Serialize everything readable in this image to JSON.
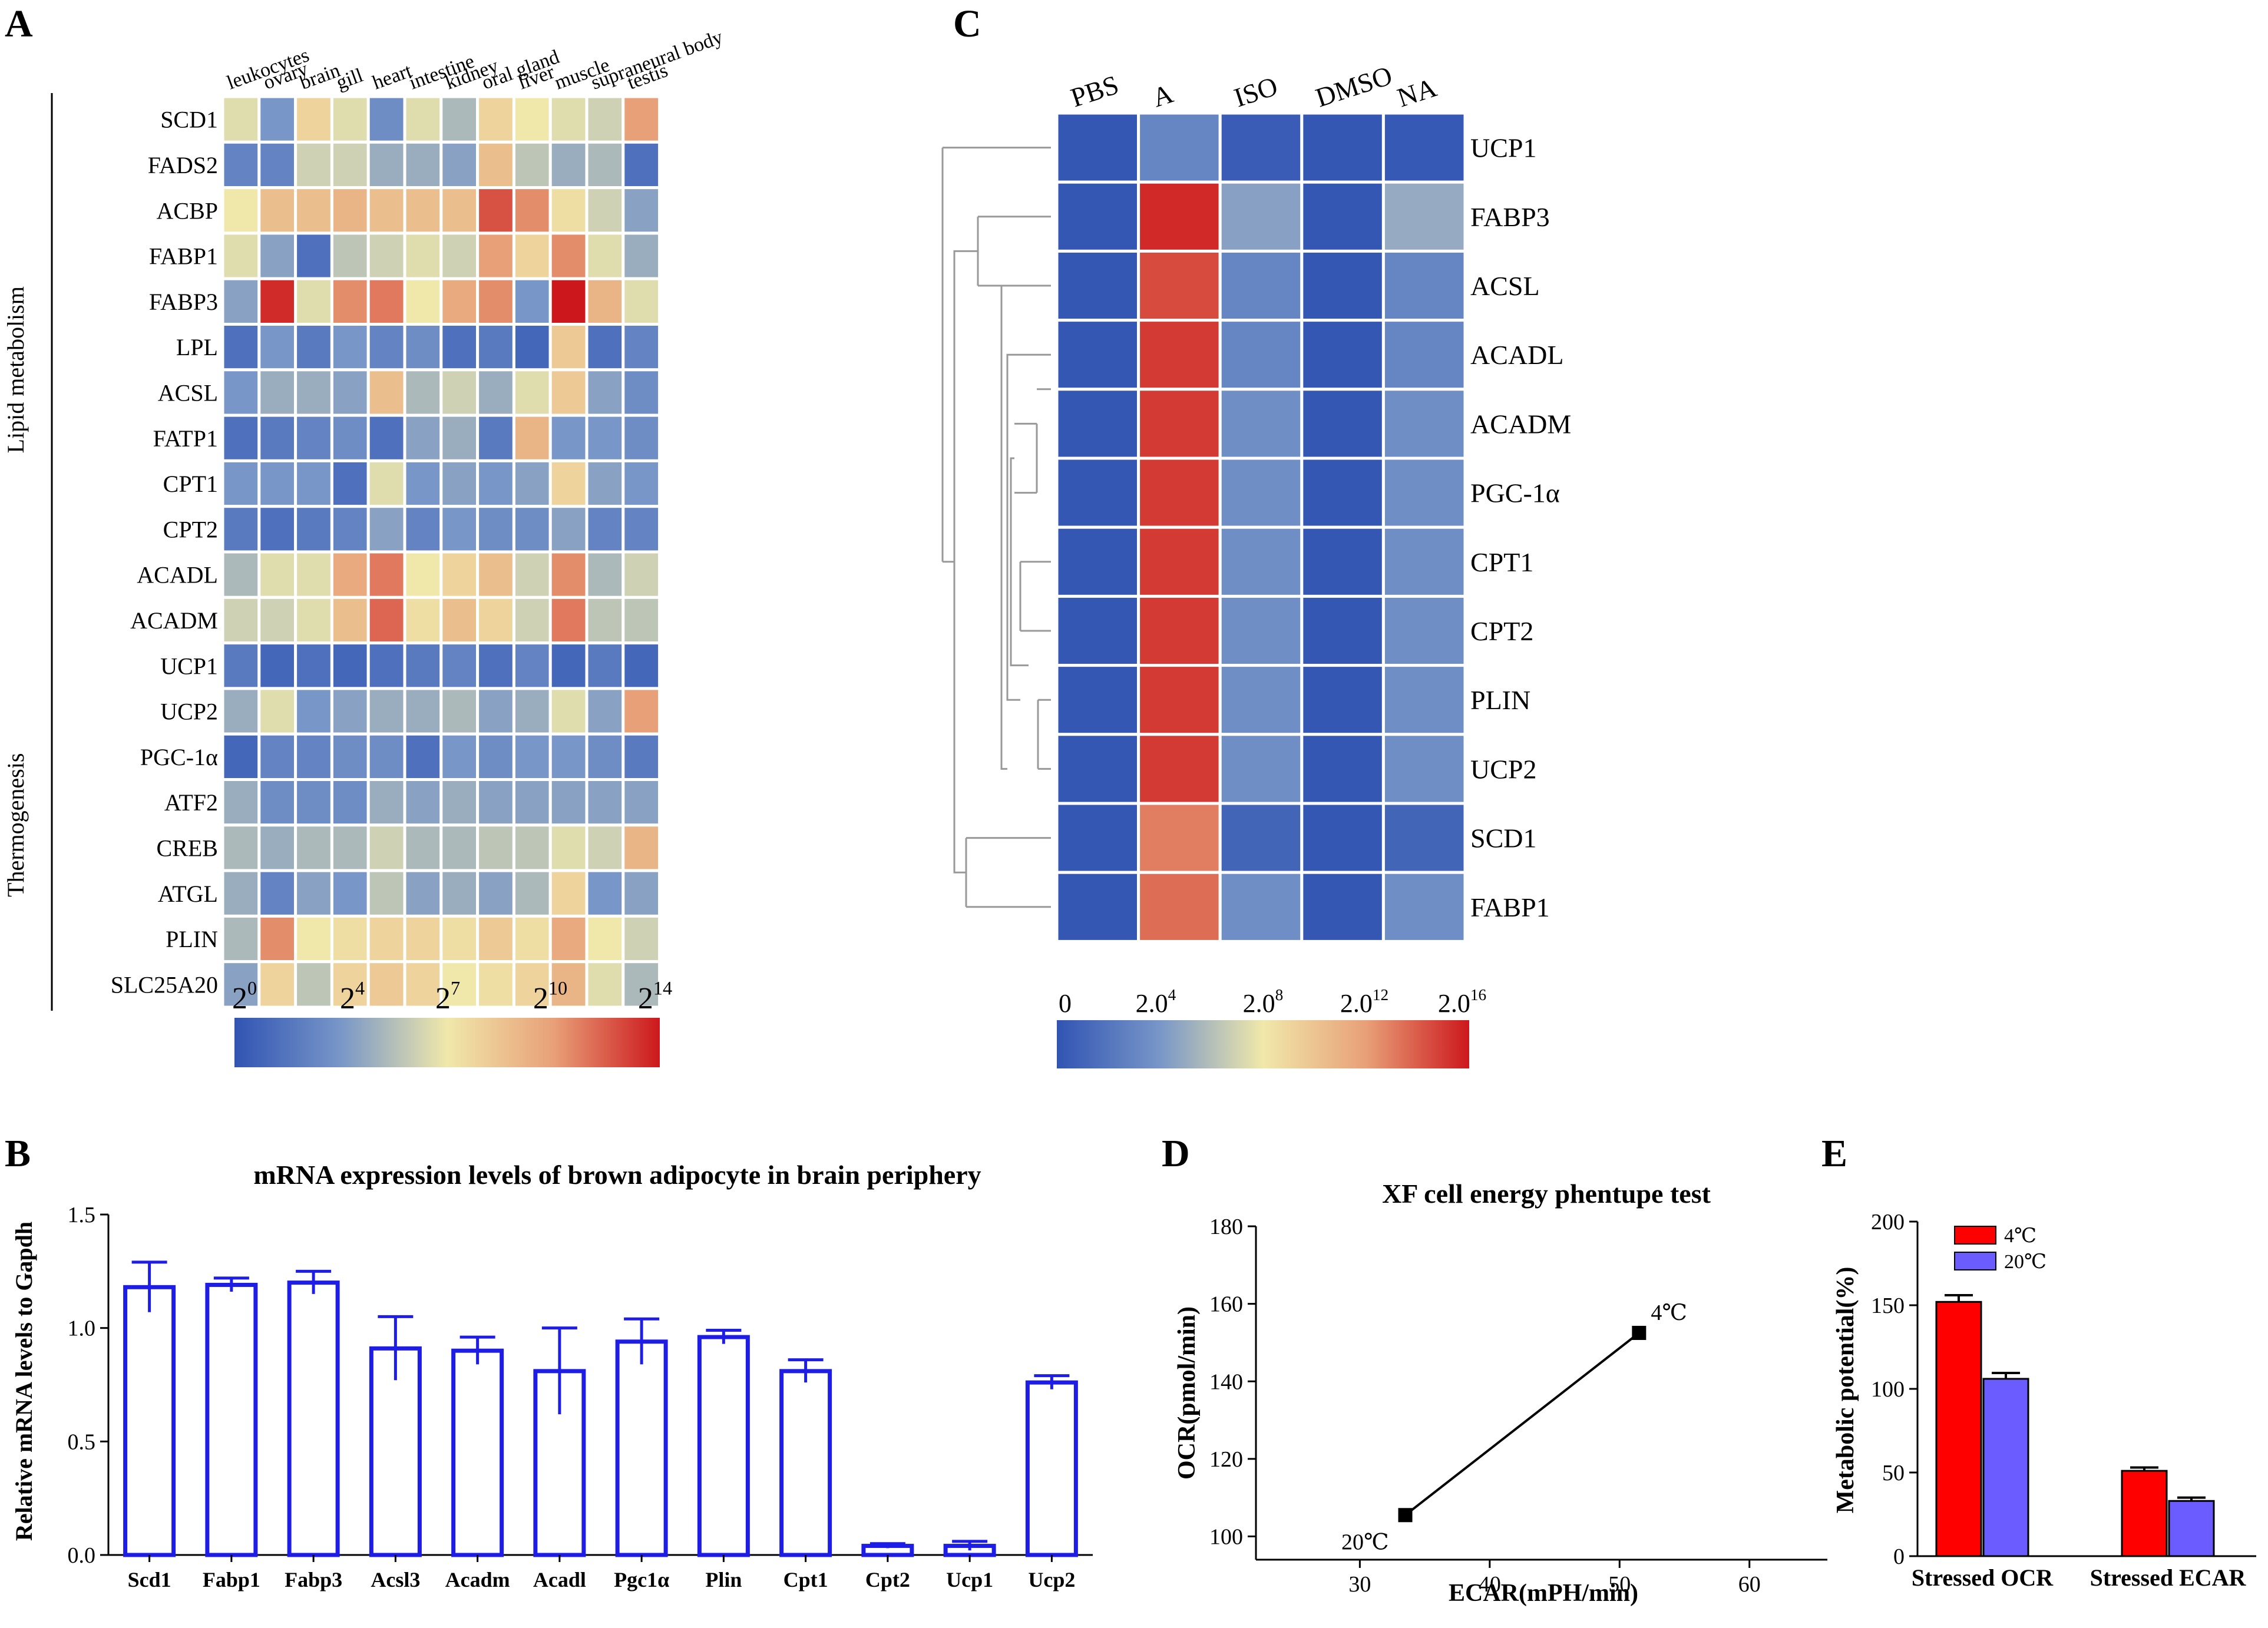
{
  "panel_letters": {
    "a": "A",
    "b": "B",
    "c": "C",
    "d": "D",
    "e": "E"
  },
  "chart_data": [
    {
      "id": "A",
      "type": "heatmap",
      "columns": [
        "leukocytes",
        "ovary",
        "brain",
        "gill",
        "heart",
        "intestine",
        "kidney",
        "oral gland",
        "liver",
        "muscle",
        "supraneural body",
        "testis"
      ],
      "rows": [
        "SCD1",
        "FADS2",
        "ACBP",
        "FABP1",
        "FABP3",
        "LPL",
        "ACSL",
        "FATP1",
        "CPT1",
        "CPT2",
        "ACADL",
        "ACADM",
        "UCP1",
        "UCP2",
        "PGC-1α",
        "ATF2",
        "CREB",
        "ATGL",
        "PLIN",
        "SLC25A20"
      ],
      "groups": [
        {
          "label": "Lipid metabolism",
          "first_row": 0,
          "last_row": 11
        },
        {
          "label": "Thermogenesis",
          "first_row": 12,
          "last_row": 19
        }
      ],
      "values_log2": [
        [
          6.5,
          3.5,
          8,
          6.5,
          3,
          6.5,
          5,
          8,
          7,
          6.5,
          6,
          10.5
        ],
        [
          2.5,
          2.5,
          6,
          6,
          4.5,
          4.5,
          4,
          9,
          5.5,
          4.5,
          5,
          1.5
        ],
        [
          7,
          9,
          9,
          9.5,
          9,
          9,
          9,
          12.5,
          11,
          7.5,
          6,
          4
        ],
        [
          6.5,
          4,
          1.5,
          5.5,
          6,
          6.5,
          6,
          10.5,
          8,
          11,
          6.5,
          4.5
        ],
        [
          4,
          13.5,
          6.5,
          11,
          11.5,
          7,
          10,
          11,
          3.5,
          14,
          9.5,
          6.5
        ],
        [
          1.5,
          3.5,
          2,
          3.5,
          2.5,
          3,
          1.5,
          2,
          1,
          8.5,
          1.5,
          2.5
        ],
        [
          3.5,
          4.5,
          4.5,
          4,
          9,
          5,
          6,
          4.5,
          6.5,
          8.5,
          4,
          3
        ],
        [
          1.5,
          2,
          2.5,
          3,
          1.5,
          4,
          4.5,
          2,
          9.5,
          3.5,
          3.5,
          3
        ],
        [
          3.5,
          3.5,
          3.5,
          1.5,
          6.5,
          3.5,
          4,
          3.5,
          4,
          8,
          4,
          3.5
        ],
        [
          2,
          1.5,
          2,
          2.5,
          4,
          2.5,
          3.5,
          3,
          3,
          4,
          2.5,
          2.5
        ],
        [
          5,
          6.5,
          6.5,
          10,
          11.5,
          7,
          8,
          9,
          6,
          11,
          5,
          6
        ],
        [
          6,
          6,
          6.5,
          9,
          12,
          7.5,
          9,
          8,
          6,
          11.5,
          5.5,
          5.5
        ],
        [
          2,
          1,
          1.5,
          1,
          1.5,
          2,
          2.5,
          1.5,
          2.5,
          1,
          2,
          1
        ],
        [
          4.5,
          6.5,
          3.5,
          4,
          4.5,
          4.5,
          5,
          4,
          4.5,
          6.5,
          4,
          10.5
        ],
        [
          1,
          2.5,
          2.5,
          3,
          3,
          1.5,
          3.5,
          3,
          3.5,
          3.5,
          3,
          2
        ],
        [
          4.5,
          3,
          3,
          3,
          4.5,
          4,
          4.5,
          4,
          4,
          4,
          4,
          4
        ],
        [
          5,
          4.5,
          5,
          5,
          6,
          5,
          5,
          5.5,
          5.5,
          6.5,
          6,
          9.5
        ],
        [
          4.5,
          2.5,
          4,
          3.5,
          5.5,
          4,
          4.5,
          4,
          5,
          8,
          3.5,
          4
        ],
        [
          5,
          11,
          7,
          7.5,
          8,
          8,
          7.5,
          8.5,
          7.5,
          10,
          7,
          6
        ],
        [
          4,
          8,
          5.5,
          8,
          8.5,
          8,
          7,
          7.5,
          8,
          9.5,
          6.5,
          5
        ]
      ],
      "colorbar": {
        "ticks": [
          "2",
          "2",
          "2",
          "2",
          "2"
        ],
        "exponents": [
          "0",
          "4",
          "7",
          "10",
          "14"
        ]
      }
    },
    {
      "id": "C",
      "type": "heatmap",
      "columns": [
        "PBS",
        "A",
        "ISO",
        "DMSO",
        "NA"
      ],
      "rows": [
        "UCP1",
        "FABP3",
        "ACSL",
        "ACADL",
        "ACADM",
        "PGC-1α",
        "CPT1",
        "CPT2",
        "PLIN",
        "UCP2",
        "SCD1",
        "FABP1"
      ],
      "values_log2": [
        [
          0.2,
          3,
          0.5,
          0.2,
          0.3
        ],
        [
          0.2,
          15.5,
          4.5,
          0.2,
          5
        ],
        [
          0.2,
          14.5,
          3,
          0.2,
          3
        ],
        [
          0.2,
          15,
          3,
          0.2,
          3
        ],
        [
          0.2,
          15,
          3.5,
          0.2,
          3.5
        ],
        [
          0.2,
          15,
          3.5,
          0.2,
          3.5
        ],
        [
          0.2,
          15,
          3.5,
          0.2,
          3.5
        ],
        [
          0.2,
          15,
          3.5,
          0.2,
          3.5
        ],
        [
          0.2,
          15,
          3.5,
          0.2,
          3.5
        ],
        [
          0.2,
          15,
          3.5,
          0.2,
          3.5
        ],
        [
          0.2,
          13,
          1,
          0.2,
          1
        ],
        [
          0.2,
          13.5,
          3.5,
          0.2,
          3.5
        ]
      ],
      "has_dendrogram": true,
      "colorbar": {
        "ticks": [
          "0",
          "2.0",
          "2.0",
          "2.0",
          "2.0"
        ],
        "exponents": [
          "",
          "4",
          "8",
          "12",
          "16"
        ]
      }
    },
    {
      "id": "B",
      "type": "bar",
      "title": "mRNA expression levels of brown adipocyte in brain periphery",
      "ylabel": "Relative mRNA levels to Gapdh",
      "categories": [
        "Scd1",
        "Fabp1",
        "Fabp3",
        "Acsl3",
        "Acadm",
        "Acadl",
        "Pgc1α",
        "Plin",
        "Cpt1",
        "Cpt2",
        "Ucp1",
        "Ucp2"
      ],
      "values": [
        1.18,
        1.19,
        1.2,
        0.91,
        0.9,
        0.81,
        0.94,
        0.96,
        0.81,
        0.04,
        0.04,
        0.76
      ],
      "errors": [
        0.11,
        0.03,
        0.05,
        0.14,
        0.06,
        0.19,
        0.1,
        0.03,
        0.05,
        0.01,
        0.02,
        0.03
      ],
      "ylim": [
        0,
        1.5
      ],
      "yticks": [
        "0.0",
        "0.5",
        "1.0",
        "1.5"
      ]
    },
    {
      "id": "D",
      "type": "line",
      "title": "XF cell energy phentupe test",
      "xlabel": "ECAR(mPH/min)",
      "ylabel": "OCR(pmol/min)",
      "points": [
        {
          "x": 33.5,
          "y": 105.5,
          "label": "20℃"
        },
        {
          "x": 51.5,
          "y": 152.5,
          "label": "4℃"
        }
      ],
      "xlim": [
        22,
        66
      ],
      "ylim": [
        94,
        180
      ],
      "xticks": [
        "30",
        "40",
        "50",
        "60"
      ],
      "yticks": [
        "100",
        "120",
        "140",
        "160",
        "180"
      ]
    },
    {
      "id": "E",
      "type": "bar",
      "ylabel": "Metabolic potential(%)",
      "categories": [
        "Stressed OCR",
        "Stressed ECAR"
      ],
      "series": [
        {
          "name": "4℃",
          "color": "#ff0000",
          "values": [
            152,
            51
          ],
          "errors": [
            4,
            2
          ]
        },
        {
          "name": "20℃",
          "color": "#6a5cff",
          "values": [
            106,
            33
          ],
          "errors": [
            3.5,
            2
          ]
        }
      ],
      "ylim": [
        0,
        200
      ],
      "yticks": [
        "0",
        "50",
        "100",
        "150",
        "200"
      ]
    }
  ]
}
